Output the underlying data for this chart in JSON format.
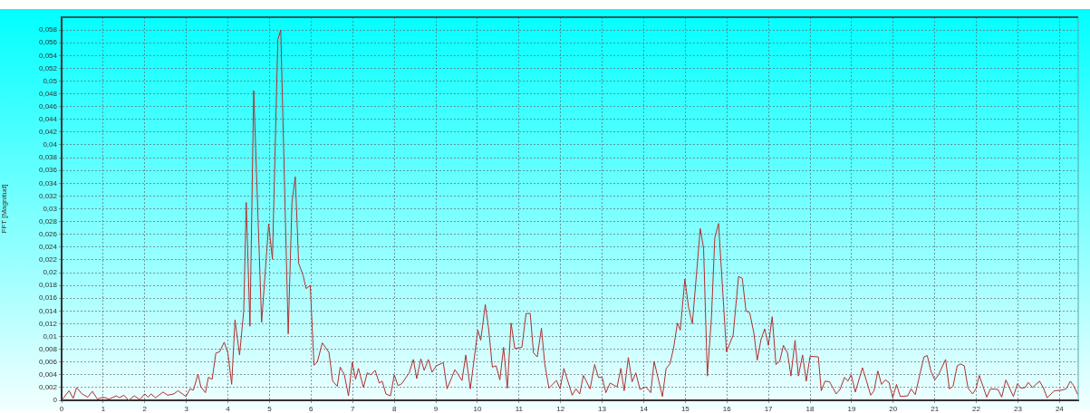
{
  "chart_data": {
    "type": "line",
    "ylabel": "FFT [Magnitud]",
    "xlim": [
      0,
      24.45
    ],
    "xticks": [
      0,
      1,
      2,
      3,
      4,
      5,
      6,
      7,
      8,
      9,
      10,
      11,
      12,
      13,
      14,
      15,
      16,
      17,
      18,
      19,
      20,
      21,
      22,
      23,
      24
    ],
    "ylim": [
      0,
      0.06
    ],
    "yticks": [
      {
        "value": 0,
        "label": "0"
      },
      {
        "value": 0.002,
        "label": "0,002"
      },
      {
        "value": 0.004,
        "label": "0,004"
      },
      {
        "value": 0.006,
        "label": "0,006"
      },
      {
        "value": 0.008,
        "label": "0,008"
      },
      {
        "value": 0.01,
        "label": "0,01"
      },
      {
        "value": 0.012,
        "label": "0,012"
      },
      {
        "value": 0.014,
        "label": "0,014"
      },
      {
        "value": 0.016,
        "label": "0,016"
      },
      {
        "value": 0.018,
        "label": "0,018"
      },
      {
        "value": 0.02,
        "label": "0,02"
      },
      {
        "value": 0.022,
        "label": "0,022"
      },
      {
        "value": 0.024,
        "label": "0,024"
      },
      {
        "value": 0.026,
        "label": "0,026"
      },
      {
        "value": 0.028,
        "label": "0,028"
      },
      {
        "value": 0.03,
        "label": "0,03"
      },
      {
        "value": 0.032,
        "label": "0,032"
      },
      {
        "value": 0.034,
        "label": "0,034"
      },
      {
        "value": 0.036,
        "label": "0,036"
      },
      {
        "value": 0.038,
        "label": "0,038"
      },
      {
        "value": 0.04,
        "label": "0,04"
      },
      {
        "value": 0.042,
        "label": "0,042"
      },
      {
        "value": 0.044,
        "label": "0,044"
      },
      {
        "value": 0.046,
        "label": "0,046"
      },
      {
        "value": 0.048,
        "label": "0,048"
      },
      {
        "value": 0.05,
        "label": "0,05"
      },
      {
        "value": 0.052,
        "label": "0,052"
      },
      {
        "value": 0.054,
        "label": "0,054"
      },
      {
        "value": 0.056,
        "label": "0,056"
      },
      {
        "value": 0.058,
        "label": "0,058"
      }
    ],
    "grid": true,
    "legend": false,
    "marker": "none",
    "line_style": "solid",
    "series": [
      {
        "color": "#b03030",
        "x": [
          0,
          0.18,
          0.28,
          0.36,
          0.49,
          0.63,
          0.74,
          0.86,
          1.0,
          1.14,
          1.32,
          1.39,
          1.5,
          1.61,
          1.75,
          1.88,
          2.0,
          2.08,
          2.15,
          2.26,
          2.44,
          2.55,
          2.7,
          2.8,
          2.99,
          3.09,
          3.17,
          3.28,
          3.35,
          3.46,
          3.53,
          3.62,
          3.71,
          3.8,
          3.91,
          4.0,
          4.09,
          4.17,
          4.28,
          4.38,
          4.44,
          4.53,
          4.62,
          4.81,
          4.98,
          5.07,
          5.2,
          5.27,
          5.45,
          5.54,
          5.62,
          5.7,
          5.81,
          5.88,
          5.98,
          6.07,
          6.15,
          6.27,
          6.43,
          6.52,
          6.63,
          6.7,
          6.8,
          6.9,
          6.99,
          7.07,
          7.14,
          7.26,
          7.35,
          7.44,
          7.54,
          7.64,
          7.71,
          7.8,
          7.91,
          8.0,
          8.09,
          8.18,
          8.36,
          8.46,
          8.54,
          8.64,
          8.72,
          8.82,
          8.91,
          9.01,
          9.18,
          9.27,
          9.46,
          9.63,
          9.72,
          9.83,
          9.92,
          10.01,
          10.08,
          10.19,
          10.27,
          10.36,
          10.45,
          10.54,
          10.63,
          10.72,
          10.81,
          10.9,
          11.07,
          11.17,
          11.27,
          11.35,
          11.44,
          11.54,
          11.62,
          11.72,
          11.9,
          11.99,
          12.08,
          12.28,
          12.37,
          12.46,
          12.55,
          12.71,
          12.82,
          12.91,
          13.0,
          13.09,
          13.19,
          13.36,
          13.45,
          13.53,
          13.63,
          13.72,
          13.81,
          13.91,
          14.05,
          14.17,
          14.25,
          14.45,
          14.54,
          14.63,
          14.72,
          14.81,
          14.88,
          14.99,
          15.08,
          15.17,
          15.36,
          15.44,
          15.53,
          15.63,
          15.71,
          15.8,
          15.99,
          16.15,
          16.28,
          16.37,
          16.46,
          16.55,
          16.65,
          16.73,
          16.82,
          16.91,
          17.0,
          17.09,
          17.18,
          17.27,
          17.36,
          17.46,
          17.54,
          17.64,
          17.72,
          17.82,
          17.91,
          18.0,
          18.2,
          18.27,
          18.36,
          18.47,
          18.63,
          18.72,
          18.83,
          18.91,
          18.99,
          19.09,
          19.26,
          19.36,
          19.46,
          19.54,
          19.63,
          19.72,
          19.81,
          19.9,
          19.99,
          20.08,
          20.17,
          20.35,
          20.43,
          20.53,
          20.64,
          20.74,
          20.82,
          20.91,
          21.0,
          21.09,
          21.26,
          21.35,
          21.44,
          21.54,
          21.62,
          21.71,
          21.8,
          21.91,
          21.99,
          22.07,
          22.25,
          22.34,
          22.52,
          22.61,
          22.71,
          22.89,
          22.99,
          23.07,
          23.17,
          23.25,
          23.35,
          23.52,
          23.61,
          23.7,
          23.88,
          24.06,
          24.16,
          24.26,
          24.34,
          24.44
        ],
        "values": [
          0,
          0.0015,
          0.0003,
          0.002,
          0.001,
          0.0005,
          0.0014,
          0.0002,
          0.0005,
          0.0002,
          0.0007,
          0.0004,
          0.0008,
          0,
          0.0007,
          0.0001,
          0.001,
          0.0005,
          0.001,
          0.0004,
          0.0013,
          0.0008,
          0.001,
          0.0015,
          0.0006,
          0.0018,
          0.0016,
          0.0041,
          0.0021,
          0.0012,
          0.0036,
          0.0033,
          0.0074,
          0.0076,
          0.0091,
          0.0074,
          0.0025,
          0.0126,
          0.0071,
          0.014,
          0.031,
          0.0116,
          0.0485,
          0.0122,
          0.0276,
          0.0221,
          0.0565,
          0.058,
          0.0104,
          0.031,
          0.035,
          0.0215,
          0.0195,
          0.0175,
          0.018,
          0.0055,
          0.006,
          0.009,
          0.0075,
          0.003,
          0.0022,
          0.0052,
          0.004,
          0.0007,
          0.006,
          0.0033,
          0.005,
          0.002,
          0.0043,
          0.004,
          0.0047,
          0.0027,
          0.003,
          0.001,
          0.0007,
          0.004,
          0.0023,
          0.0026,
          0.0043,
          0.0064,
          0.0034,
          0.0065,
          0.0047,
          0.0064,
          0.0044,
          0.0054,
          0.0059,
          0.0018,
          0.0048,
          0.0031,
          0.0071,
          0.0018,
          0.0064,
          0.011,
          0.0094,
          0.015,
          0.0112,
          0.0052,
          0.0054,
          0.0032,
          0.0083,
          0.0019,
          0.0121,
          0.0081,
          0.0083,
          0.0136,
          0.0136,
          0.0074,
          0.0068,
          0.0113,
          0.0057,
          0.0019,
          0.0031,
          0.0018,
          0.005,
          0.0008,
          0.0018,
          0.001,
          0.0039,
          0.0018,
          0.0056,
          0.0036,
          0.0036,
          0.0012,
          0.0027,
          0.0021,
          0.005,
          0.0015,
          0.0067,
          0.0029,
          0.0043,
          0.0017,
          0.0021,
          0.0012,
          0.0061,
          0.0006,
          0.005,
          0.0057,
          0.0082,
          0.0121,
          0.011,
          0.019,
          0.0145,
          0.012,
          0.0269,
          0.0238,
          0.0038,
          0.0131,
          0.0255,
          0.0277,
          0.0076,
          0.0102,
          0.0194,
          0.0191,
          0.014,
          0.0137,
          0.0105,
          0.0063,
          0.0095,
          0.0112,
          0.0086,
          0.0131,
          0.0056,
          0.0061,
          0.0086,
          0.0074,
          0.0038,
          0.0094,
          0.0038,
          0.0071,
          0.003,
          0.0069,
          0.0068,
          0.0015,
          0.003,
          0.0029,
          0.001,
          0.0017,
          0.0036,
          0.003,
          0.004,
          0.0013,
          0.0051,
          0.003,
          0.0008,
          0.0015,
          0.0046,
          0.0025,
          0.0032,
          0.0028,
          0.0004,
          0.0025,
          0.0006,
          0.0007,
          0.0018,
          0.0009,
          0.004,
          0.0068,
          0.007,
          0.0045,
          0.0032,
          0.004,
          0.0064,
          0.0018,
          0.0022,
          0.0054,
          0.0057,
          0.0054,
          0.0019,
          0.001,
          0.0018,
          0.0039,
          0.0005,
          0.0018,
          0.0017,
          0.0005,
          0.0032,
          0.0006,
          0.0026,
          0.0019,
          0.002,
          0.0028,
          0.002,
          0.003,
          0.002,
          0.0004,
          0.0015,
          0.0016,
          0.0018,
          0.003,
          0.0023,
          0.0009
        ]
      }
    ]
  }
}
